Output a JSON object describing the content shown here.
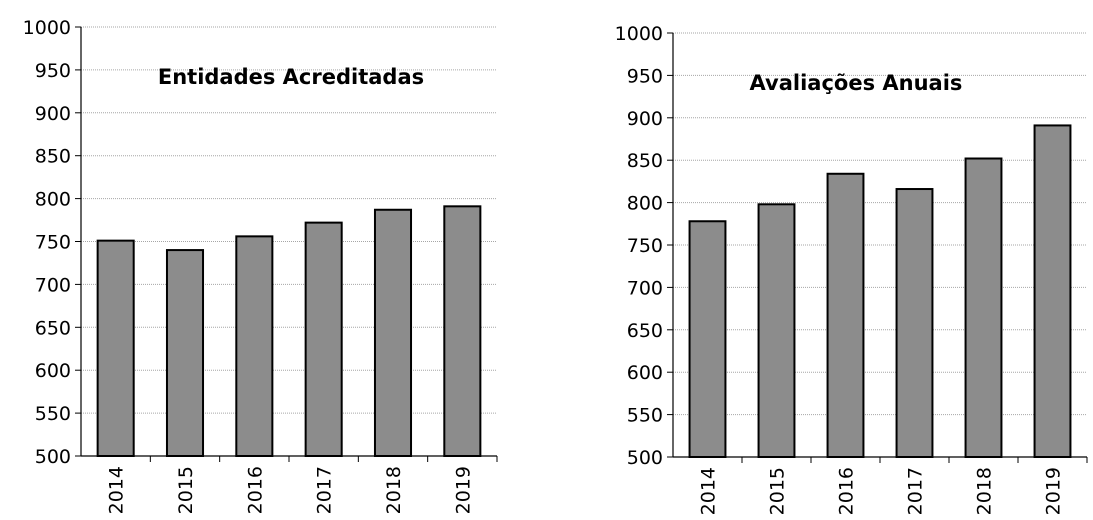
{
  "chart_data": [
    {
      "type": "bar",
      "title": "Entidades Acreditadas",
      "categories": [
        "2014",
        "2015",
        "2016",
        "2017",
        "2018",
        "2019"
      ],
      "values": [
        751,
        740,
        756,
        772,
        787,
        791
      ],
      "ylim": [
        500,
        1000
      ],
      "yticks": [
        500,
        550,
        600,
        650,
        700,
        750,
        800,
        850,
        900,
        950,
        1000
      ],
      "grid": true,
      "bar_color": "#8c8c8c",
      "bar_edge_color": "#000000"
    },
    {
      "type": "bar",
      "title": "Avaliações Anuais",
      "categories": [
        "2014",
        "2015",
        "2016",
        "2017",
        "2018",
        "2019"
      ],
      "values": [
        778,
        798,
        834,
        816,
        852,
        891
      ],
      "ylim": [
        500,
        1000
      ],
      "yticks": [
        500,
        550,
        600,
        650,
        700,
        750,
        800,
        850,
        900,
        950,
        1000
      ],
      "grid": true,
      "bar_color": "#8c8c8c",
      "bar_edge_color": "#000000"
    }
  ]
}
